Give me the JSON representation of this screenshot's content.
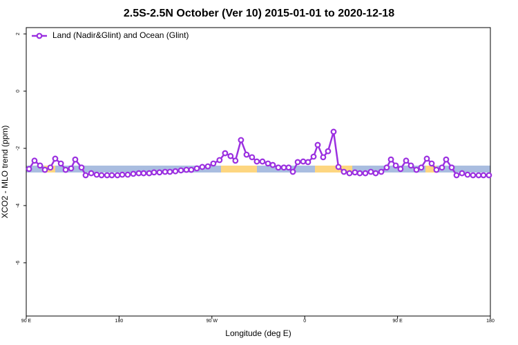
{
  "chart_data": {
    "type": "line",
    "title": "2.5S-2.5N October (Ver 10)   2015-01-01 to 2020-12-18",
    "x_label": "Longitude (deg E)",
    "y_label": "XCO2 - MLO trend (ppm)",
    "xlim": [
      90,
      540
    ],
    "xticks": [
      {
        "value": 90,
        "label": "90 E"
      },
      180,
      {
        "value": 270,
        "label": "90 W"
      },
      {
        "value": 360,
        "label": "0"
      },
      {
        "value": 450,
        "label": "90 E"
      },
      {
        "value": 540,
        "label": "180"
      }
    ],
    "ylim": [
      -7.86,
      2.22
    ],
    "yticks": [
      2,
      0,
      -2,
      -4,
      -6
    ],
    "legend": "top-left",
    "x": [
      92.7,
      98.0,
      103.4,
      108.1,
      113.4,
      118.1,
      123.6,
      128.2,
      133.5,
      137.5,
      143.6,
      147.6,
      153.0,
      158.3,
      163.0,
      168.4,
      173.0,
      178.4,
      183.1,
      188.4,
      193.8,
      199.1,
      203.8,
      209.2,
      213.9,
      219.2,
      224.6,
      229.3,
      234.6,
      240.0,
      245.3,
      250.0,
      255.4,
      260.7,
      266.1,
      271.4,
      277.4,
      282.8,
      288.1,
      292.8,
      298.2,
      303.6,
      308.9,
      313.6,
      319.0,
      324.4,
      329.0,
      334.4,
      339.8,
      344.4,
      348.5,
      353.2,
      358.5,
      363.2,
      368.6,
      372.6,
      377.9,
      382.6,
      388.0,
      392.7,
      398.0,
      403.4,
      408.7,
      413.4,
      418.8,
      424.1,
      428.8,
      434.2,
      439.5,
      443.6,
      448.3,
      452.9,
      458.3,
      463.0,
      468.3,
      473.0,
      478.4,
      483.1,
      487.7,
      493.1,
      497.1,
      502.5,
      507.2,
      512.5,
      517.9,
      523.2,
      528.6,
      533.3,
      538.6
    ],
    "series": [
      {
        "name": "Land (Nadir&Glint) and Ocean (Glint)",
        "color": "#9b30e0",
        "values": [
          -2.72,
          -2.43,
          -2.6,
          -2.75,
          -2.67,
          -2.36,
          -2.53,
          -2.75,
          -2.7,
          -2.39,
          -2.67,
          -2.94,
          -2.87,
          -2.92,
          -2.94,
          -2.94,
          -2.94,
          -2.94,
          -2.92,
          -2.92,
          -2.89,
          -2.87,
          -2.87,
          -2.87,
          -2.84,
          -2.84,
          -2.82,
          -2.82,
          -2.8,
          -2.77,
          -2.75,
          -2.75,
          -2.7,
          -2.65,
          -2.63,
          -2.53,
          -2.41,
          -2.17,
          -2.27,
          -2.43,
          -1.71,
          -2.22,
          -2.31,
          -2.46,
          -2.46,
          -2.53,
          -2.58,
          -2.67,
          -2.67,
          -2.67,
          -2.82,
          -2.48,
          -2.46,
          -2.48,
          -2.29,
          -1.88,
          -2.31,
          -2.1,
          -1.42,
          -2.65,
          -2.82,
          -2.87,
          -2.84,
          -2.87,
          -2.87,
          -2.82,
          -2.87,
          -2.82,
          -2.67,
          -2.39,
          -2.6,
          -2.72,
          -2.43,
          -2.6,
          -2.75,
          -2.67,
          -2.36,
          -2.53,
          -2.75,
          -2.67,
          -2.39,
          -2.67,
          -2.94,
          -2.87,
          -2.92,
          -2.94,
          -2.94,
          -2.94,
          -2.94
        ]
      }
    ]
  }
}
